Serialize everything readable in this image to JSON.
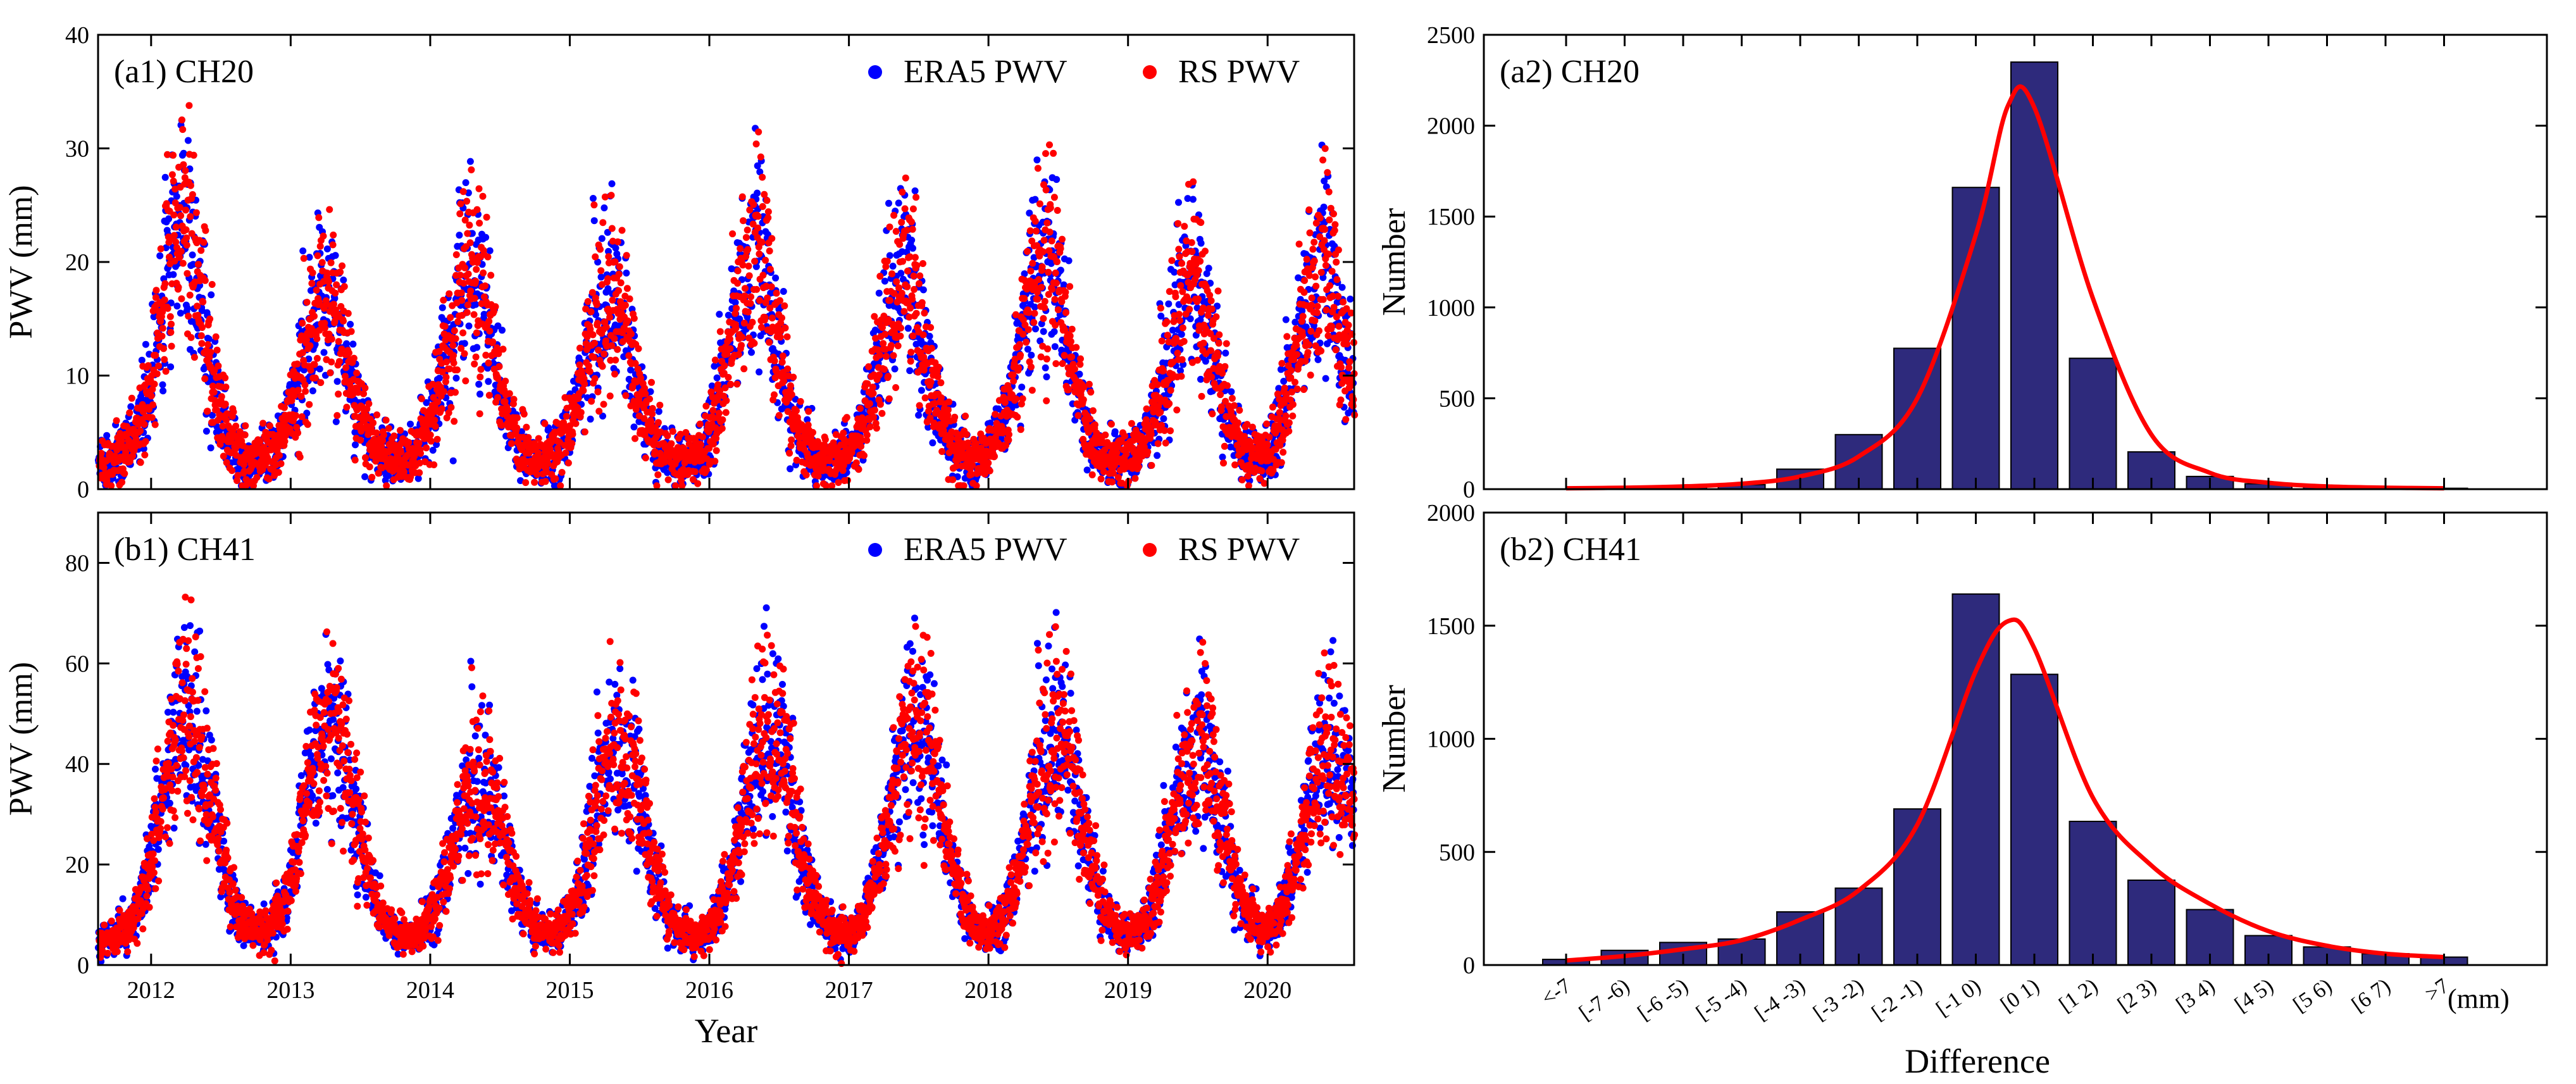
{
  "colors": {
    "era5": "#0000ff",
    "rs": "#ff0000",
    "bar_fill": "#2e2a7c",
    "fit_line": "#ff0000",
    "axis": "#000000"
  },
  "chart_data": [
    {
      "id": "a1",
      "type": "scatter",
      "label": "(a1) CH20",
      "xlabel": "",
      "ylabel": "PWV (mm)",
      "xlim": [
        2011.62,
        2020.62
      ],
      "ylim": [
        0,
        40
      ],
      "yticks": [
        0,
        10,
        20,
        30,
        40
      ],
      "xticks": [
        "2012",
        "2013",
        "2014",
        "2015",
        "2016",
        "2017",
        "2018",
        "2019",
        "2020"
      ],
      "xtick_values": [
        2012.0,
        2013.0,
        2014.0,
        2015.0,
        2016.0,
        2017.0,
        2018.0,
        2019.0,
        2020.0
      ],
      "legend": [
        "ERA5 PWV",
        "RS PWV"
      ],
      "legend_position": "top-right",
      "season": {
        "base": 2.5,
        "peak_times": [
          2012.22,
          2013.25,
          2014.28,
          2015.28,
          2016.32,
          2017.38,
          2018.4,
          2019.45,
          2020.38
        ],
        "peaks": [
          20,
          14,
          17,
          15,
          18,
          16,
          18,
          16,
          17
        ],
        "width": 0.16
      },
      "series": [
        {
          "name": "ERA5 PWV",
          "description": "daily precipitable water vapour from ERA5, 2011-08 to 2020-08"
        },
        {
          "name": "RS PWV",
          "description": "daily precipitable water vapour from radiosonde, 2011-08 to 2020-08"
        }
      ]
    },
    {
      "id": "b1",
      "type": "scatter",
      "label": "(b1) CH41",
      "xlabel": "Year",
      "ylabel": "PWV (mm)",
      "xlim": [
        2011.62,
        2020.62
      ],
      "ylim": [
        0,
        90
      ],
      "yticks": [
        0,
        20,
        40,
        60,
        80
      ],
      "xticks": [
        "2012",
        "2013",
        "2014",
        "2015",
        "2016",
        "2017",
        "2018",
        "2019",
        "2020"
      ],
      "xtick_values": [
        2012.0,
        2013.0,
        2014.0,
        2015.0,
        2016.0,
        2017.0,
        2018.0,
        2019.0,
        2020.0
      ],
      "legend": [
        "ERA5 PWV",
        "RS PWV"
      ],
      "legend_position": "top-right",
      "season": {
        "base": 5,
        "peak_times": [
          2012.25,
          2013.28,
          2014.35,
          2015.35,
          2016.42,
          2017.48,
          2018.48,
          2019.5,
          2020.44
        ],
        "peaks": [
          45,
          42,
          32,
          38,
          42,
          43,
          42,
          38,
          38
        ],
        "width": 0.18
      },
      "series": [
        {
          "name": "ERA5 PWV",
          "description": "daily precipitable water vapour from ERA5, 2011-08 to 2020-08"
        },
        {
          "name": "RS PWV",
          "description": "daily precipitable water vapour from radiosonde, 2011-08 to 2020-08"
        }
      ]
    },
    {
      "id": "a2",
      "type": "bar",
      "label": "(a2) CH20",
      "xlabel": "",
      "ylabel": "Number",
      "ylim": [
        0,
        2500
      ],
      "yticks": [
        0,
        500,
        1000,
        1500,
        2000,
        2500
      ],
      "categories": [
        "<-7",
        "[-7 -6)",
        "[-6 -5)",
        "[-5 -4)",
        "[-4 -3)",
        "[-3 -2)",
        "[-2 -1)",
        "[-1 0)",
        "[0 1)",
        "[1 2)",
        "[2 3)",
        "[3 4)",
        "[4 5)",
        "[5 6)",
        "[6 7)",
        ">7"
      ],
      "values": [
        0,
        5,
        10,
        25,
        110,
        300,
        775,
        1660,
        2350,
        720,
        205,
        70,
        30,
        15,
        8,
        5
      ],
      "fit_curve": [
        5,
        8,
        15,
        30,
        70,
        180,
        500,
        1400,
        2100,
        1050,
        300,
        90,
        35,
        15,
        8,
        5
      ],
      "fit_peak": {
        "category_index": 7.55,
        "value": 2110
      }
    },
    {
      "id": "b2",
      "type": "bar",
      "label": "(b2) CH41",
      "xlabel": "Difference",
      "xunit": "(mm)",
      "ylabel": "Number",
      "ylim": [
        0,
        2000
      ],
      "yticks": [
        0,
        500,
        1000,
        1500,
        2000
      ],
      "categories": [
        "<-7",
        "[-7 -6)",
        "[-6 -5)",
        "[-5 -4)",
        "[-4 -3)",
        "[-3 -2)",
        "[-2 -1)",
        "[-1 0)",
        "[0 1)",
        "[1 2)",
        "[2 3)",
        "[3 4)",
        "[4 5)",
        "[5 6)",
        "[6 7)",
        ">7"
      ],
      "values": [
        25,
        65,
        100,
        115,
        235,
        340,
        690,
        1640,
        1285,
        635,
        375,
        245,
        130,
        80,
        50,
        35
      ],
      "fit_curve": [
        20,
        40,
        70,
        110,
        200,
        330,
        620,
        1300,
        1400,
        740,
        440,
        270,
        150,
        85,
        50,
        35
      ],
      "fit_peak": {
        "category_index": 7.55,
        "value": 1520
      }
    }
  ]
}
